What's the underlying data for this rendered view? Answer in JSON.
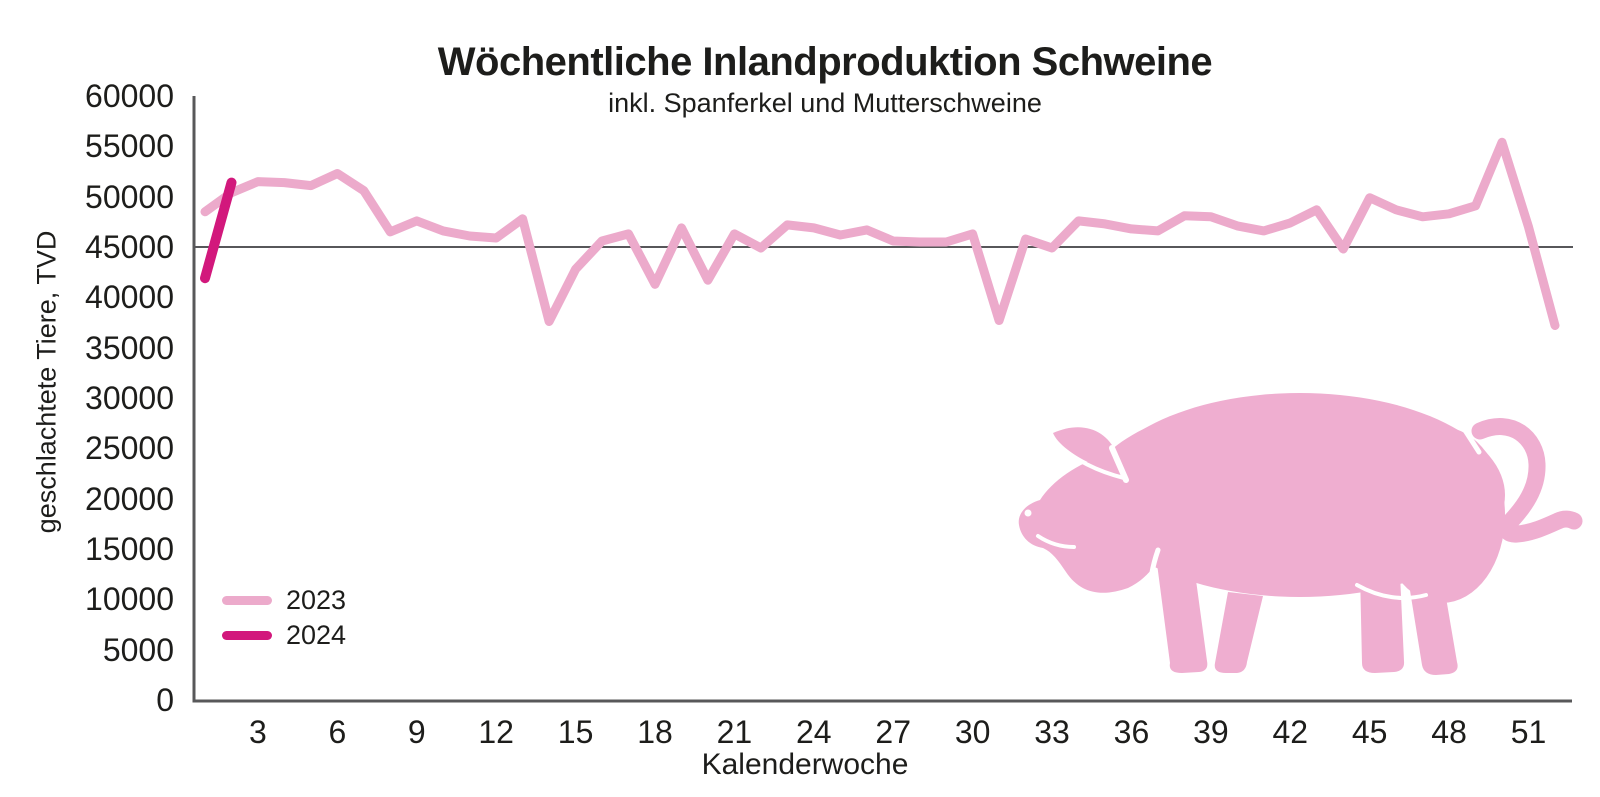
{
  "chart_data": {
    "type": "line",
    "title": "Wöchentliche Inlandproduktion Schweine",
    "subtitle": "inkl. Spanferkel und Mutterschweine",
    "ylabel": "geschlachtete Tiere, TVD",
    "xlabel": "Kalenderwoche",
    "ylim": [
      0,
      60000
    ],
    "yticks": [
      0,
      5000,
      10000,
      15000,
      20000,
      25000,
      30000,
      35000,
      40000,
      45000,
      50000,
      55000,
      60000
    ],
    "xticks": [
      3,
      6,
      9,
      12,
      15,
      18,
      21,
      24,
      27,
      30,
      33,
      36,
      39,
      42,
      45,
      48,
      51
    ],
    "reference_line": 45000,
    "grid": "off",
    "legend_position": "inside lower-left",
    "series": [
      {
        "name": "2023",
        "color": "#ecaacb",
        "stroke_width": 9,
        "start_week": 1,
        "values": [
          48500,
          50400,
          51500,
          51400,
          51100,
          52300,
          50600,
          46500,
          47600,
          46600,
          46100,
          45900,
          47800,
          37600,
          42800,
          45600,
          46300,
          41300,
          46900,
          41700,
          46300,
          44900,
          47200,
          46900,
          46200,
          46700,
          45600,
          45500,
          45500,
          46300,
          37700,
          45800,
          44900,
          47600,
          47300,
          46800,
          46600,
          48100,
          48000,
          47100,
          46600,
          47400,
          48700,
          44800,
          49900,
          48700,
          48000,
          48300,
          49100,
          55400,
          47000,
          37200
        ]
      },
      {
        "name": "2024",
        "color": "#d2187c",
        "stroke_width": 10,
        "start_week": 1,
        "values": [
          41900,
          51400
        ]
      }
    ]
  },
  "colors": {
    "axis": "#58585a",
    "refline": "#57575a",
    "text": "#1d1d1b",
    "pig": "#efaed0",
    "background": "#ffffff",
    "series_2023": "#ecaacb",
    "series_2024": "#d2187c"
  },
  "icons": [
    {
      "name": "pig-icon",
      "description": "pink pig silhouette"
    }
  ]
}
